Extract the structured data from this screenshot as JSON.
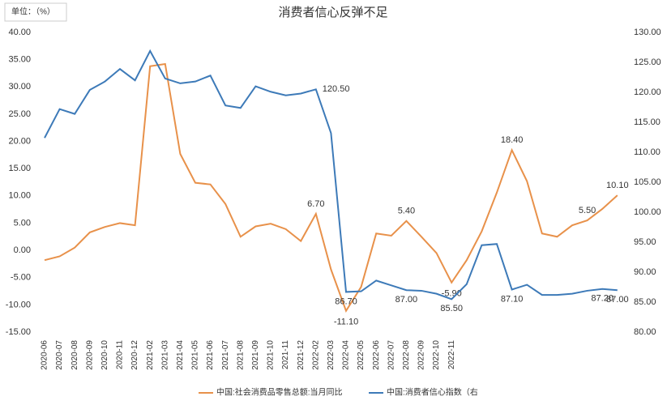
{
  "chart_data": {
    "type": "line",
    "title": "消费者信心反弹不足",
    "unit_note": "单位：（%）",
    "categories": [
      "2020-06",
      "2020-07",
      "2020-08",
      "2020-09",
      "2020-10",
      "2020-11",
      "2020-12",
      "2021-02",
      "2021-03",
      "2021-04",
      "2021-05",
      "2021-06",
      "2021-07",
      "2021-08",
      "2021-09",
      "2021-10",
      "2021-11",
      "2021-12",
      "2022-02",
      "2022-03",
      "2022-04",
      "2022-05",
      "2022-06",
      "2022-07",
      "2022-08",
      "2022-09",
      "2022-10",
      "2022-11",
      null,
      null,
      null,
      null,
      null,
      null,
      null,
      null,
      null,
      null,
      null
    ],
    "series": [
      {
        "name": "中国:社会消费品零售总额:当月同比",
        "color": "#e8914a",
        "values": [
          -1.8,
          -1.1,
          0.5,
          3.3,
          4.3,
          5.0,
          4.6,
          33.8,
          34.2,
          17.7,
          12.4,
          12.1,
          8.5,
          2.5,
          4.4,
          4.9,
          3.9,
          1.7,
          6.7,
          -3.5,
          -11.1,
          -6.7,
          3.1,
          2.7,
          5.4,
          2.5,
          -0.5,
          -5.9,
          -1.8,
          3.5,
          10.6,
          18.4,
          12.7,
          3.1,
          2.5,
          4.6,
          5.5,
          7.6,
          10.1
        ],
        "value_labels": [
          null,
          null,
          null,
          null,
          null,
          null,
          null,
          null,
          null,
          null,
          null,
          null,
          null,
          null,
          null,
          null,
          null,
          null,
          "6.70",
          null,
          "-11.10",
          null,
          null,
          null,
          "5.40",
          null,
          null,
          "-5.90",
          null,
          null,
          null,
          "18.40",
          null,
          null,
          null,
          null,
          "5.50",
          null,
          "10.10"
        ]
      },
      {
        "name": "中国:消费者信心指数（右",
        "color": "#3d7ab8",
        "axis": "y2",
        "values": [
          112.4,
          117.2,
          116.4,
          120.4,
          121.8,
          123.9,
          122.0,
          126.9,
          122.3,
          121.5,
          121.8,
          122.8,
          117.8,
          117.4,
          121.0,
          120.1,
          119.5,
          119.8,
          120.5,
          113.2,
          86.7,
          86.8,
          88.6,
          87.8,
          87.0,
          86.9,
          86.4,
          85.5,
          88.0,
          94.5,
          94.7,
          87.1,
          87.9,
          86.2,
          86.2,
          86.4,
          86.9,
          87.2,
          87.0
        ],
        "value_labels": [
          null,
          null,
          null,
          null,
          null,
          null,
          null,
          null,
          null,
          null,
          null,
          null,
          null,
          null,
          null,
          null,
          null,
          null,
          "120.50",
          null,
          "86.70",
          null,
          null,
          null,
          "87.00",
          null,
          null,
          "85.50",
          null,
          null,
          null,
          "87.10",
          null,
          null,
          null,
          null,
          null,
          "87.20",
          "87.00"
        ]
      }
    ],
    "ylim": [
      -15,
      40
    ],
    "yticks": [
      {
        "value": -15,
        "label": "-15.00"
      },
      {
        "value": -10,
        "label": "-10.00"
      },
      {
        "value": -5,
        "label": "-5.00"
      },
      {
        "value": 0,
        "label": "0.00"
      },
      {
        "value": 5,
        "label": "5.00"
      },
      {
        "value": 10,
        "label": "10.00"
      },
      {
        "value": 15,
        "label": "15.00"
      },
      {
        "value": 20,
        "label": "20.00"
      },
      {
        "value": 25,
        "label": "25.00"
      },
      {
        "value": 30,
        "label": "30.00"
      },
      {
        "value": 35,
        "label": "35.00"
      },
      {
        "value": 40,
        "label": "40.00"
      }
    ],
    "y2lim": [
      80,
      130
    ],
    "y2ticks": [
      {
        "value": 80,
        "label": "80.00"
      },
      {
        "value": 85,
        "label": "85.00"
      },
      {
        "value": 90,
        "label": "90.00"
      },
      {
        "value": 95,
        "label": "95.00"
      },
      {
        "value": 100,
        "label": "100.00"
      },
      {
        "value": 105,
        "label": "105.00"
      },
      {
        "value": 110,
        "label": "110.00"
      },
      {
        "value": 115,
        "label": "115.00"
      },
      {
        "value": 120,
        "label": "120.00"
      },
      {
        "value": 125,
        "label": "125.00"
      },
      {
        "value": 130,
        "label": "130.00"
      }
    ],
    "legend": "bottom"
  }
}
